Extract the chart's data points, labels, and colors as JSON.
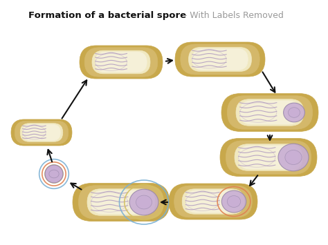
{
  "title_bold": "Formation of a bacterial spore",
  "title_suffix": " – With Labels Removed",
  "bg_color": "#e8e8e8",
  "white_bg": "#ffffff",
  "cell_outer": "#c8a84b",
  "cell_mid": "#d4b86a",
  "cell_inner": "#f0e8c0",
  "cell_fill": "#f5f0d8",
  "spore_fill": "#c8aed4",
  "spore_outline": "#9988aa",
  "dna_color": "#b09ac0",
  "ring_blue": "#7ab0d4",
  "ring_orange": "#e08050",
  "ring_yellow": "#d4c060",
  "arrow_color": "#111111",
  "title_color": "#111111",
  "subtitle_color": "#999999"
}
